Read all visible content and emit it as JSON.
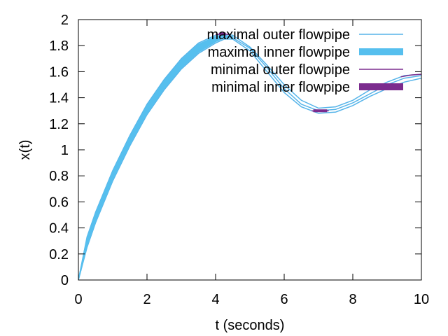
{
  "chart_data": {
    "type": "line",
    "xlabel": "t (seconds)",
    "ylabel": "x(t)",
    "xlim": [
      0,
      10
    ],
    "ylim": [
      0,
      2
    ],
    "x_ticks": [
      "0",
      "2",
      "4",
      "6",
      "8",
      "10"
    ],
    "y_ticks": [
      "0",
      "0.2",
      "0.4",
      "0.6",
      "0.8",
      "1",
      "1.2",
      "1.4",
      "1.6",
      "1.8",
      "2"
    ],
    "grid": false,
    "legend_position": "top-right",
    "series": [
      {
        "name": "maximal outer flowpipe",
        "style": "line",
        "color": "#56b4e9",
        "lower": [
          [
            0,
            0
          ],
          [
            0.25,
            0.25
          ],
          [
            0.5,
            0.44
          ],
          [
            1,
            0.76
          ],
          [
            1.5,
            1.03
          ],
          [
            2,
            1.27
          ],
          [
            2.5,
            1.46
          ],
          [
            3,
            1.62
          ],
          [
            3.5,
            1.74
          ],
          [
            4,
            1.82
          ],
          [
            4.25,
            1.85
          ],
          [
            4.5,
            1.85
          ],
          [
            5,
            1.76
          ],
          [
            5.5,
            1.6
          ],
          [
            6,
            1.44
          ],
          [
            6.5,
            1.33
          ],
          [
            7,
            1.28
          ],
          [
            7.5,
            1.29
          ],
          [
            8,
            1.34
          ],
          [
            8.5,
            1.41
          ],
          [
            9,
            1.47
          ],
          [
            9.5,
            1.52
          ],
          [
            10,
            1.55
          ]
        ],
        "middle": [
          [
            0,
            0
          ],
          [
            0.25,
            0.29
          ],
          [
            0.5,
            0.48
          ],
          [
            1,
            0.8
          ],
          [
            1.5,
            1.07
          ],
          [
            2,
            1.31
          ],
          [
            2.5,
            1.5
          ],
          [
            3,
            1.66
          ],
          [
            3.5,
            1.78
          ],
          [
            4,
            1.85
          ],
          [
            4.25,
            1.87
          ],
          [
            4.5,
            1.86
          ],
          [
            5,
            1.78
          ],
          [
            5.5,
            1.63
          ],
          [
            6,
            1.47
          ],
          [
            6.5,
            1.35
          ],
          [
            7,
            1.3
          ],
          [
            7.5,
            1.31
          ],
          [
            8,
            1.36
          ],
          [
            8.5,
            1.43
          ],
          [
            9,
            1.5
          ],
          [
            9.5,
            1.55
          ],
          [
            10,
            1.57
          ]
        ],
        "upper": [
          [
            0,
            0
          ],
          [
            0.25,
            0.33
          ],
          [
            0.5,
            0.52
          ],
          [
            1,
            0.84
          ],
          [
            1.5,
            1.11
          ],
          [
            2,
            1.35
          ],
          [
            2.5,
            1.54
          ],
          [
            3,
            1.7
          ],
          [
            3.5,
            1.82
          ],
          [
            4,
            1.88
          ],
          [
            4.25,
            1.89
          ],
          [
            4.5,
            1.88
          ],
          [
            5,
            1.79
          ],
          [
            5.5,
            1.65
          ],
          [
            6,
            1.5
          ],
          [
            6.5,
            1.38
          ],
          [
            7,
            1.32
          ],
          [
            7.5,
            1.33
          ],
          [
            8,
            1.38
          ],
          [
            8.5,
            1.46
          ],
          [
            9,
            1.52
          ],
          [
            9.5,
            1.57
          ],
          [
            10,
            1.58
          ]
        ]
      },
      {
        "name": "maximal inner flowpipe",
        "style": "band",
        "color": "#56bfee",
        "lower": [
          [
            0,
            0
          ],
          [
            0.25,
            0.26
          ],
          [
            0.5,
            0.45
          ],
          [
            1,
            0.77
          ],
          [
            1.5,
            1.04
          ],
          [
            2,
            1.28
          ],
          [
            2.5,
            1.47
          ],
          [
            3,
            1.63
          ],
          [
            3.5,
            1.75
          ],
          [
            4,
            1.83
          ],
          [
            4.25,
            1.86
          ],
          [
            4.5,
            1.86
          ]
        ],
        "upper": [
          [
            0,
            0
          ],
          [
            0.25,
            0.32
          ],
          [
            0.5,
            0.51
          ],
          [
            1,
            0.83
          ],
          [
            1.5,
            1.1
          ],
          [
            2,
            1.34
          ],
          [
            2.5,
            1.53
          ],
          [
            3,
            1.69
          ],
          [
            3.5,
            1.81
          ],
          [
            4,
            1.87
          ],
          [
            4.25,
            1.88
          ],
          [
            4.5,
            1.87
          ]
        ]
      },
      {
        "name": "minimal outer flowpipe",
        "style": "line",
        "color": "#7b2c8e",
        "segments": [
          [
            [
              4.0,
              1.885
            ],
            [
              4.2,
              1.89
            ],
            [
              4.4,
              1.885
            ]
          ],
          [
            [
              6.8,
              1.3
            ],
            [
              7.05,
              1.295
            ],
            [
              7.3,
              1.3
            ]
          ],
          [
            [
              9.4,
              1.56
            ],
            [
              9.7,
              1.575
            ],
            [
              10,
              1.58
            ]
          ]
        ]
      },
      {
        "name": "minimal inner flowpipe",
        "style": "band",
        "color": "#7b2c8e",
        "segments": [
          [
            [
              4.1,
              1.89
            ],
            [
              4.3,
              1.89
            ]
          ],
          [
            [
              6.85,
              1.3
            ],
            [
              7.25,
              1.3
            ]
          ]
        ]
      }
    ]
  }
}
